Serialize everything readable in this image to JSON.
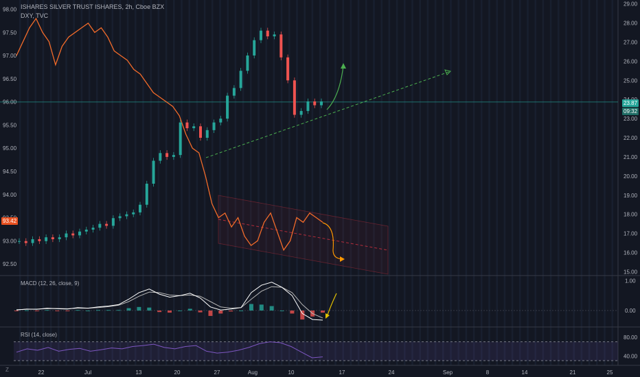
{
  "header": {
    "symbol": "ISHARES SILVER TRUST ISHARES, 2h, Cboe BZX",
    "overlay": "DXY, TVC"
  },
  "badges": {
    "price": "23.87",
    "countdown": "09:32",
    "dxy_value": "93.42"
  },
  "indicators": {
    "macd_label": "MACD (12, 26, close, 9)",
    "rsi_label": "RSI (14, close)"
  },
  "colors": {
    "background": "#131722",
    "up": "#26a69a",
    "down": "#ef5350",
    "dxy_line": "#f26b2a",
    "macd_line": "#ffffff",
    "signal_line": "#b7b7b7",
    "rsi_line": "#7e57c2",
    "forecast_green": "#4caf50",
    "forecast_orange": "#ff9800"
  },
  "chart_data": {
    "type": "line",
    "x_tick_labels": [
      "22",
      "Jul",
      "13",
      "20",
      "27",
      "Aug",
      "10",
      "17",
      "24",
      "Sep",
      "8",
      "14",
      "21",
      "25"
    ],
    "left_axis": {
      "ticks": [
        "98.00",
        "97.50",
        "97.00",
        "96.50",
        "96.00",
        "95.50",
        "95.00",
        "94.50",
        "94.00",
        "93.50",
        "93.00",
        "92.50"
      ],
      "range": [
        92.25,
        98.2
      ]
    },
    "right_axis": {
      "ticks": [
        "29.00",
        "28.00",
        "27.00",
        "26.00",
        "25.00",
        "24.00",
        "23.00",
        "22.00",
        "21.00",
        "20.00",
        "19.00",
        "18.00",
        "17.00",
        "16.00",
        "15.00"
      ],
      "range": [
        14.8,
        29.2
      ]
    },
    "macd_axis": {
      "ticks": [
        "1.00",
        "0.00"
      ],
      "range": [
        -0.55,
        1.15
      ]
    },
    "rsi_axis": {
      "ticks": [
        "80.00",
        "40.00"
      ],
      "range": [
        20,
        100
      ]
    },
    "series": [
      {
        "name": "DXY, TVC",
        "axis": "left",
        "values": [
          97.0,
          97.3,
          97.6,
          97.8,
          97.5,
          97.3,
          96.8,
          97.2,
          97.4,
          97.5,
          97.6,
          97.7,
          97.5,
          97.6,
          97.4,
          97.1,
          97.0,
          96.9,
          96.7,
          96.6,
          96.4,
          96.2,
          96.1,
          96.0,
          95.9,
          95.7,
          95.3,
          95.0,
          94.9,
          94.4,
          93.8,
          93.5,
          93.6,
          93.3,
          93.5,
          93.1,
          92.9,
          93.0,
          93.4,
          93.6,
          93.2,
          92.8,
          93.0,
          93.5,
          93.4,
          93.6,
          93.5,
          93.4
        ]
      },
      {
        "name": "ISHARES SILVER TRUST ISHARES",
        "axis": "right",
        "values": [
          16.6,
          16.5,
          16.7,
          16.6,
          16.8,
          16.7,
          16.8,
          17.0,
          16.9,
          17.1,
          17.2,
          17.3,
          17.5,
          17.4,
          17.8,
          17.9,
          18.0,
          18.1,
          18.5,
          19.6,
          20.8,
          21.2,
          21.0,
          21.1,
          22.8,
          22.5,
          22.6,
          22.0,
          22.4,
          22.8,
          23.0,
          24.2,
          24.6,
          25.5,
          26.3,
          27.1,
          27.6,
          27.3,
          27.4,
          26.2,
          25.0,
          23.2,
          23.4,
          23.9,
          23.7,
          23.9
        ]
      }
    ],
    "macd": {
      "macd": [
        0.02,
        0.05,
        0.04,
        0.08,
        0.06,
        0.05,
        0.1,
        0.08,
        0.12,
        0.15,
        0.2,
        0.38,
        0.6,
        0.72,
        0.55,
        0.45,
        0.5,
        0.58,
        0.42,
        0.12,
        0.02,
        0.05,
        0.1,
        0.6,
        0.85,
        0.95,
        0.78,
        0.5,
        -0.1,
        -0.3,
        -0.32
      ],
      "signal": [
        0.03,
        0.04,
        0.05,
        0.06,
        0.07,
        0.06,
        0.08,
        0.08,
        0.1,
        0.13,
        0.18,
        0.3,
        0.48,
        0.62,
        0.6,
        0.52,
        0.5,
        0.52,
        0.48,
        0.3,
        0.12,
        0.08,
        0.1,
        0.38,
        0.65,
        0.8,
        0.78,
        0.6,
        0.2,
        -0.1,
        -0.25
      ]
    },
    "rsi": [
      48,
      55,
      52,
      58,
      50,
      54,
      56,
      50,
      53,
      57,
      55,
      60,
      62,
      65,
      58,
      55,
      60,
      62,
      50,
      46,
      48,
      52,
      58,
      66,
      70,
      68,
      60,
      48,
      36,
      38
    ],
    "reference_levels": {
      "rsi_upper": 70,
      "rsi_lower": 30,
      "macd_zero": 0.0
    }
  }
}
